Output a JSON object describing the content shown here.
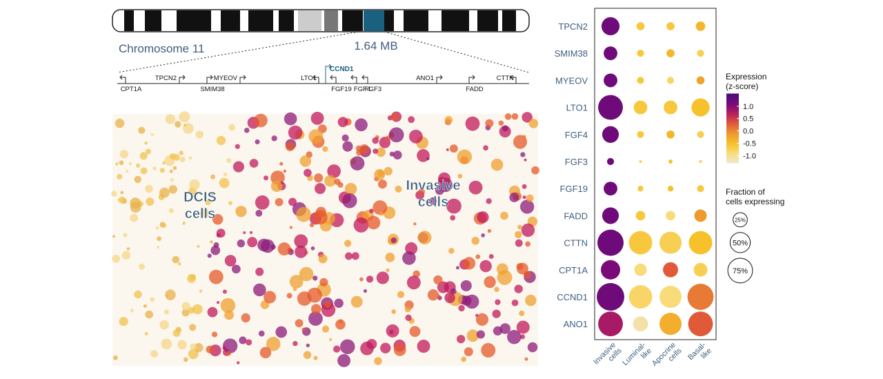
{
  "chromosome": {
    "label": "Chromosome 11",
    "region": "1.64 MB",
    "genes": [
      "CPT1A",
      "TPCN2",
      "SMIM38",
      "MYEOV",
      "LTO1",
      "CCND1",
      "FGF19",
      "FGF4",
      "FGF3",
      "ANO1",
      "FADD",
      "CTTN"
    ]
  },
  "image": {
    "labels": [
      [
        "DCIS",
        "cells"
      ],
      [
        "Invasive",
        "cells"
      ]
    ]
  },
  "chart_data": {
    "type": "dot",
    "categories": [
      "Invasive cells",
      "Luminal-like",
      "Apocrine cells",
      "Basal-like"
    ],
    "rows": [
      "TPCN2",
      "SMIM38",
      "MYEOV",
      "LTO1",
      "FGF4",
      "FGF3",
      "FGF19",
      "FADD",
      "CTTN",
      "CPT1A",
      "CCND1",
      "ANO1"
    ],
    "expression": [
      [
        1.2,
        -0.6,
        -0.6,
        -0.4
      ],
      [
        1.2,
        -0.6,
        -0.4,
        -0.7
      ],
      [
        1.2,
        -0.6,
        -0.8,
        -0.2
      ],
      [
        1.2,
        -0.6,
        -0.6,
        -0.5
      ],
      [
        1.2,
        -0.6,
        -0.4,
        -0.7
      ],
      [
        1.2,
        -0.7,
        -0.5,
        -0.7
      ],
      [
        1.2,
        -0.6,
        -0.5,
        -0.6
      ],
      [
        1.2,
        -0.6,
        -0.9,
        -0.1
      ],
      [
        1.2,
        -0.6,
        -0.7,
        -0.5
      ],
      [
        1.1,
        -0.9,
        0.3,
        -0.7
      ],
      [
        1.2,
        -0.8,
        -0.9,
        0.1
      ],
      [
        0.8,
        -1.1,
        -0.3,
        0.3
      ]
    ],
    "fraction": [
      [
        40,
        8,
        8,
        11
      ],
      [
        23,
        6,
        8,
        6
      ],
      [
        23,
        6,
        6,
        8
      ],
      [
        75,
        23,
        23,
        40
      ],
      [
        34,
        6,
        8,
        6
      ],
      [
        6,
        1,
        2,
        1
      ],
      [
        23,
        4,
        4,
        6
      ],
      [
        34,
        11,
        11,
        19
      ],
      [
        84,
        67,
        60,
        67
      ],
      [
        46,
        19,
        28,
        23
      ],
      [
        93,
        67,
        60,
        84
      ],
      [
        75,
        28,
        60,
        75
      ]
    ],
    "color_title": [
      "Expression",
      "(z-score)"
    ],
    "zlim": [
      -1.3,
      1.5
    ],
    "zticks": [
      {
        "value": 1,
        "label": "1.0"
      },
      {
        "value": 0.5,
        "label": "0.5"
      },
      {
        "value": 0,
        "label": "0.0"
      },
      {
        "value": -0.5,
        "label": "-0.5"
      },
      {
        "value": -1,
        "label": "-1.0"
      }
    ],
    "colorscale": [
      "#efe6d6",
      "#f8dc7a",
      "#f6c12a",
      "#ee9a2e",
      "#e05a3a",
      "#b8205e",
      "#7a0a78",
      "#4a0a80"
    ],
    "size_title": [
      "Fraction of",
      "cells expressing"
    ],
    "size_ticks": [
      {
        "value": 25,
        "label": "25%"
      },
      {
        "value": 50,
        "label": "50%"
      },
      {
        "value": 75,
        "label": "75%"
      }
    ]
  }
}
